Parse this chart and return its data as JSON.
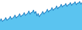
{
  "line_color": "#1a7abf",
  "fill_color": "#5bc4f0",
  "background_color": "#ffffff",
  "values": [
    55,
    68,
    52,
    58,
    62,
    75,
    58,
    65,
    70,
    82,
    65,
    72,
    78,
    90,
    72,
    80,
    85,
    98,
    80,
    88,
    92,
    105,
    88,
    95,
    100,
    115,
    95,
    105,
    108,
    120,
    100,
    112,
    85,
    100,
    80,
    92,
    98,
    112,
    96,
    105,
    110,
    125,
    108,
    118,
    120,
    135,
    118,
    128,
    130,
    145,
    128,
    138,
    140,
    155,
    138,
    148,
    148,
    160,
    142,
    152,
    155,
    165,
    148,
    158,
    160,
    170,
    152,
    162,
    162,
    172,
    155,
    165
  ],
  "ylim_min": 0,
  "figsize": [
    1.2,
    0.45
  ],
  "dpi": 100
}
